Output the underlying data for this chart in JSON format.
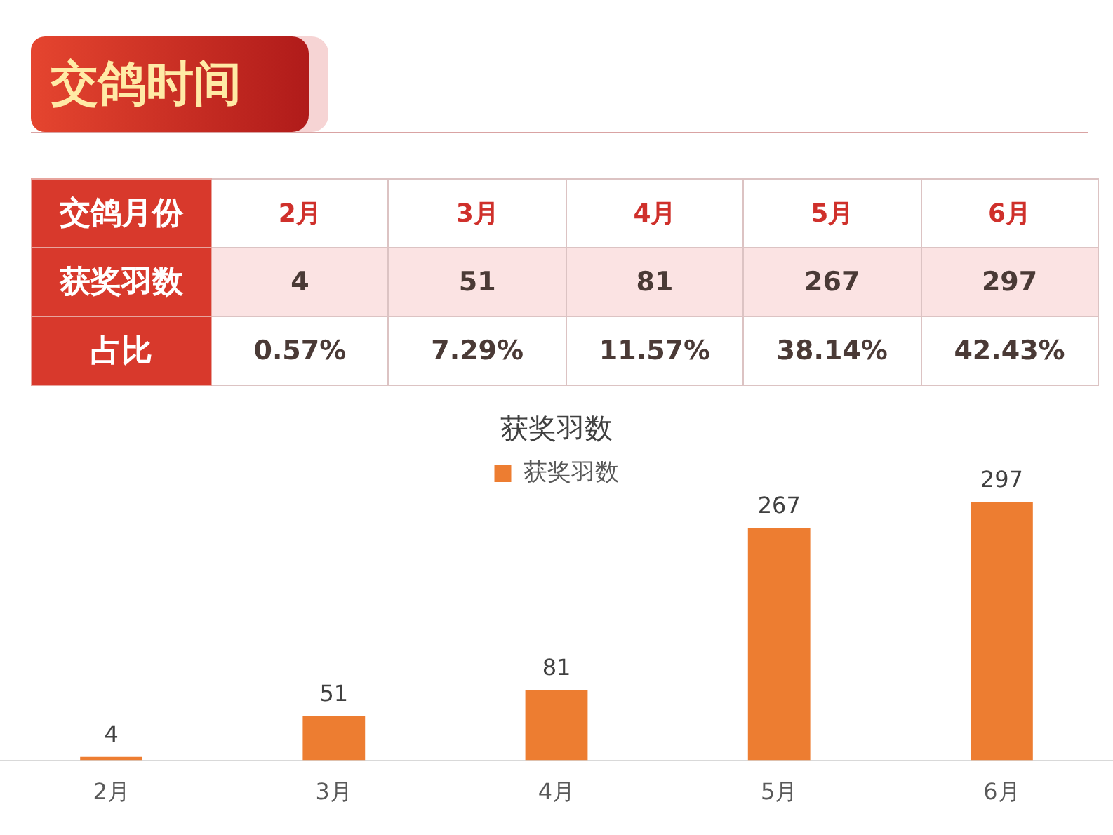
{
  "chart_data": {
    "type": "bar",
    "title": "交鸽时间",
    "subtitle": "获奖羽数",
    "categories": [
      "2月",
      "3月",
      "4月",
      "5月",
      "6月"
    ],
    "series": [
      {
        "name": "获奖羽数",
        "color": "#ed7d31",
        "values": [
          4,
          51,
          81,
          267,
          297
        ]
      }
    ],
    "data_labels": true,
    "legend": "top",
    "tick_labels": "x",
    "grid": false,
    "annotations": [
      "交鸽月份",
      "获奖羽数",
      "4",
      "51",
      "81",
      "267",
      "297",
      "占比",
      "0.57%",
      "7.29%",
      "11.57%",
      "38.14%",
      "42.43%"
    ]
  }
}
